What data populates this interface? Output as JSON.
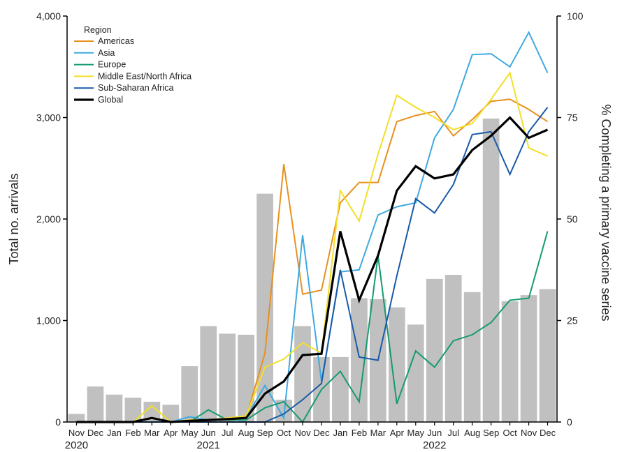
{
  "chart_data": {
    "type": "bar+line",
    "categories": [
      "Nov",
      "Dec",
      "Jan",
      "Feb",
      "Mar",
      "Apr",
      "May",
      "Jun",
      "Jul",
      "Aug",
      "Sep",
      "Oct",
      "Nov",
      "Dec",
      "Jan",
      "Feb",
      "Mar",
      "Apr",
      "May",
      "Jun",
      "Jul",
      "Aug",
      "Sep",
      "Oct",
      "Nov",
      "Dec"
    ],
    "year_labels": [
      {
        "label": "2020",
        "index": 0
      },
      {
        "label": "2021",
        "index": 7
      },
      {
        "label": "2022",
        "index": 19
      }
    ],
    "bars": {
      "axis": "left",
      "values": [
        80,
        350,
        270,
        240,
        200,
        170,
        550,
        945,
        870,
        860,
        2250,
        220,
        945,
        640,
        640,
        1220,
        1210,
        1130,
        960,
        1410,
        1450,
        1280,
        2990,
        1190,
        1250,
        1310
      ],
      "color": "#c0c0c0"
    },
    "series": [
      {
        "name": "Americas",
        "color": "#e8901e",
        "width": 2,
        "values": [
          null,
          null,
          null,
          0,
          0,
          0,
          0.5,
          0.5,
          0.5,
          1,
          17,
          63.5,
          31.5,
          32.5,
          54,
          59,
          59,
          74,
          75.5,
          76.5,
          70.5,
          74.5,
          79,
          79.5,
          77,
          74
        ]
      },
      {
        "name": "Asia",
        "color": "#3fa9e0",
        "width": 2,
        "values": [
          null,
          null,
          null,
          0,
          0,
          0,
          1.3,
          0.5,
          0.5,
          1,
          9,
          1,
          46,
          10,
          37,
          37.5,
          51,
          53,
          54,
          70,
          77,
          90.5,
          90.7,
          87.5,
          96,
          86
        ]
      },
      {
        "name": "Europe",
        "color": "#169a73",
        "width": 2,
        "values": [
          null,
          null,
          null,
          0,
          0,
          0,
          0,
          3,
          0.5,
          0.5,
          3.5,
          5,
          0,
          8,
          12.5,
          5,
          41,
          4.5,
          17.5,
          13.5,
          20,
          21.5,
          24.5,
          30,
          30.5,
          47
        ]
      },
      {
        "name": "Middle East/North Africa",
        "color": "#f2df28",
        "width": 2,
        "values": [
          null,
          null,
          null,
          0,
          4,
          0,
          0.5,
          0.5,
          1,
          1.5,
          13.5,
          15.5,
          19.5,
          17,
          57,
          49.5,
          66,
          80.5,
          77.5,
          75,
          72,
          73.5,
          79.5,
          86,
          67.5,
          65.5
        ]
      },
      {
        "name": "Sub-Saharan Africa",
        "color": "#1a5aa8",
        "width": 2,
        "values": [
          null,
          null,
          null,
          0,
          0,
          0,
          0,
          0,
          0,
          0,
          0,
          2,
          5.5,
          9.5,
          37.5,
          16,
          15.2,
          36,
          55,
          51.5,
          58.5,
          70.8,
          71.5,
          61,
          71.5,
          77.5
        ]
      },
      {
        "name": "Global",
        "color": "#000000",
        "width": 3.2,
        "values": [
          0,
          0,
          0,
          0,
          1,
          0,
          0.3,
          0.5,
          0.7,
          1,
          7,
          10,
          16.5,
          16.8,
          47,
          30,
          41,
          57,
          63,
          60,
          61,
          67,
          70.5,
          75,
          70,
          72
        ]
      }
    ],
    "legend_title": "Region",
    "legend_position": "top-left",
    "ylabel": "Total no. arrivals",
    "y2label": "% Completing a primary vaccine series",
    "ylim": [
      0,
      4000
    ],
    "y2lim": [
      0,
      100
    ],
    "yticks": [
      0,
      1000,
      2000,
      3000,
      4000
    ],
    "ytick_labels": [
      "0",
      "1,000",
      "2,000",
      "3,000",
      "4,000"
    ],
    "y2ticks": [
      0,
      25,
      50,
      75,
      100
    ],
    "y2tick_labels": [
      "0",
      "25",
      "50",
      "75",
      "100"
    ],
    "grid": false
  }
}
